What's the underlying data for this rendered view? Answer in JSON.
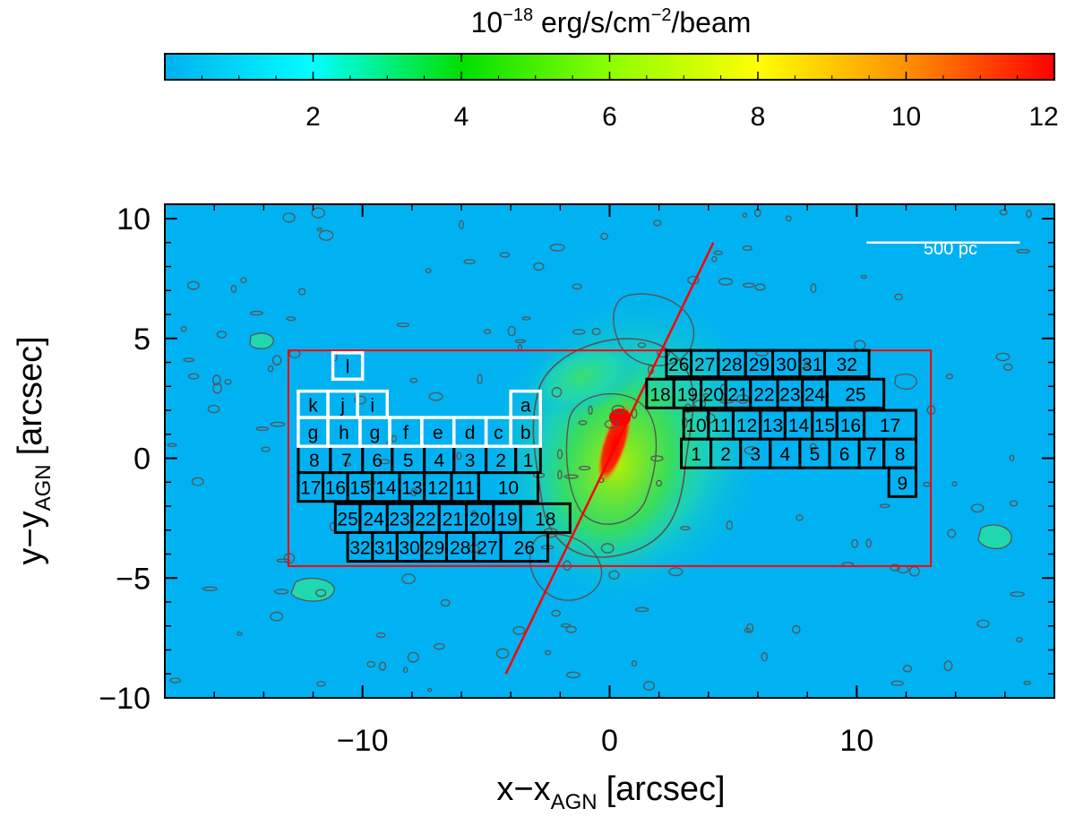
{
  "chart_data": {
    "type": "heatmap",
    "colorbar": {
      "title_base": "10",
      "title_exp": "−18",
      "title_unit": " erg/s/cm",
      "title_unit_exp": "−2",
      "title_tail": "/beam",
      "range": [
        0,
        12
      ],
      "ticks": [
        "2",
        "4",
        "6",
        "8",
        "10",
        "12"
      ],
      "tick_values": [
        2,
        4,
        6,
        8,
        10,
        12
      ],
      "colors": [
        "#00b0f0",
        "#00ffff",
        "#00e000",
        "#8cff00",
        "#ffff00",
        "#ff9000",
        "#ff0000"
      ]
    },
    "x_axis": {
      "label": "x",
      "label_minus": "−",
      "label_sub_base": "x",
      "label_sub": "AGN",
      "label_unit": "[arcsec]",
      "range": [
        -18,
        18
      ],
      "ticks": [
        "−10",
        "0",
        "10"
      ],
      "tick_values": [
        -10,
        0,
        10
      ]
    },
    "y_axis": {
      "label": "y",
      "label_minus": "−",
      "label_sub_base": "y",
      "label_sub": "AGN",
      "label_unit": "[arcsec]",
      "range": [
        -10,
        10.6
      ],
      "ticks": [
        "10",
        "5",
        "0",
        "−5",
        "−10"
      ],
      "tick_values": [
        10,
        5,
        0,
        -5,
        -10
      ]
    },
    "scale_bar": {
      "label": "500 pc",
      "x": [
        10.4,
        16.6
      ],
      "y": 9.0
    },
    "region_rectangle": {
      "x": [
        -13,
        13
      ],
      "y": [
        -4.5,
        4.5
      ],
      "color": "#ff0000"
    },
    "axis_line": {
      "x": [
        -4.2,
        4.2
      ],
      "y": [
        -9.0,
        9.0
      ],
      "color": "#ff0000"
    },
    "background_color": "#00b2f2",
    "emission_peak": {
      "x": 0.1,
      "y": 0.3,
      "value": 12
    },
    "grid": false,
    "boxes_white": [
      {
        "label": "l",
        "x": [
          -11.2,
          -10.0
        ],
        "y": [
          3.3,
          4.4
        ]
      },
      {
        "label": "k",
        "x": [
          -12.6,
          -11.4
        ],
        "y": [
          1.7,
          2.8
        ]
      },
      {
        "label": "j",
        "x": [
          -11.4,
          -10.2
        ],
        "y": [
          1.7,
          2.8
        ]
      },
      {
        "label": "i",
        "x": [
          -10.2,
          -9.0
        ],
        "y": [
          1.7,
          2.8
        ]
      },
      {
        "label": "a",
        "x": [
          -4.0,
          -2.8
        ],
        "y": [
          1.7,
          2.8
        ]
      },
      {
        "label": "g",
        "x": [
          -12.6,
          -11.4
        ],
        "y": [
          0.5,
          1.7
        ]
      },
      {
        "label": "h",
        "x": [
          -11.4,
          -10.1
        ],
        "y": [
          0.5,
          1.7
        ]
      },
      {
        "label": "g",
        "x": [
          -10.1,
          -8.9
        ],
        "y": [
          0.5,
          1.7
        ]
      },
      {
        "label": "f",
        "x": [
          -8.9,
          -7.6
        ],
        "y": [
          0.5,
          1.7
        ]
      },
      {
        "label": "e",
        "x": [
          -7.6,
          -6.3
        ],
        "y": [
          0.5,
          1.7
        ]
      },
      {
        "label": "d",
        "x": [
          -6.3,
          -5.0
        ],
        "y": [
          0.5,
          1.7
        ]
      },
      {
        "label": "c",
        "x": [
          -5.0,
          -4.0
        ],
        "y": [
          0.5,
          1.7
        ]
      },
      {
        "label": "b",
        "x": [
          -4.0,
          -2.8
        ],
        "y": [
          0.5,
          1.7
        ]
      }
    ],
    "boxes_black": [
      {
        "label": "8",
        "x": [
          -12.6,
          -11.3
        ],
        "y": [
          -0.6,
          0.5
        ]
      },
      {
        "label": "7",
        "x": [
          -11.3,
          -10.0
        ],
        "y": [
          -0.6,
          0.5
        ]
      },
      {
        "label": "6",
        "x": [
          -10.0,
          -8.8
        ],
        "y": [
          -0.6,
          0.5
        ]
      },
      {
        "label": "5",
        "x": [
          -8.8,
          -7.5
        ],
        "y": [
          -0.6,
          0.5
        ]
      },
      {
        "label": "4",
        "x": [
          -7.5,
          -6.3
        ],
        "y": [
          -0.6,
          0.5
        ]
      },
      {
        "label": "3",
        "x": [
          -6.3,
          -5.0
        ],
        "y": [
          -0.6,
          0.5
        ]
      },
      {
        "label": "2",
        "x": [
          -5.0,
          -3.8
        ],
        "y": [
          -0.6,
          0.5
        ]
      },
      {
        "label": "1",
        "x": [
          -3.8,
          -2.8
        ],
        "y": [
          -0.6,
          0.5
        ]
      },
      {
        "label": "17",
        "x": [
          -12.6,
          -11.6
        ],
        "y": [
          -1.8,
          -0.6
        ]
      },
      {
        "label": "16",
        "x": [
          -11.6,
          -10.6
        ],
        "y": [
          -1.8,
          -0.6
        ]
      },
      {
        "label": "15",
        "x": [
          -10.6,
          -9.6
        ],
        "y": [
          -1.8,
          -0.6
        ]
      },
      {
        "label": "14",
        "x": [
          -9.6,
          -8.5
        ],
        "y": [
          -1.8,
          -0.6
        ]
      },
      {
        "label": "13",
        "x": [
          -8.5,
          -7.5
        ],
        "y": [
          -1.8,
          -0.6
        ]
      },
      {
        "label": "12",
        "x": [
          -7.5,
          -6.4
        ],
        "y": [
          -1.8,
          -0.6
        ]
      },
      {
        "label": "11",
        "x": [
          -6.4,
          -5.3
        ],
        "y": [
          -1.8,
          -0.6
        ]
      },
      {
        "label": "10",
        "x": [
          -5.3,
          -2.9
        ],
        "y": [
          -1.8,
          -0.6
        ]
      },
      {
        "label": "25",
        "x": [
          -11.1,
          -10.1
        ],
        "y": [
          -3.1,
          -1.9
        ]
      },
      {
        "label": "24",
        "x": [
          -10.1,
          -9.0
        ],
        "y": [
          -3.1,
          -1.9
        ]
      },
      {
        "label": "23",
        "x": [
          -9.0,
          -8.0
        ],
        "y": [
          -3.1,
          -1.9
        ]
      },
      {
        "label": "22",
        "x": [
          -8.0,
          -6.9
        ],
        "y": [
          -3.1,
          -1.9
        ]
      },
      {
        "label": "21",
        "x": [
          -6.9,
          -5.8
        ],
        "y": [
          -3.1,
          -1.9
        ]
      },
      {
        "label": "20",
        "x": [
          -5.8,
          -4.7
        ],
        "y": [
          -3.1,
          -1.9
        ]
      },
      {
        "label": "19",
        "x": [
          -4.7,
          -3.6
        ],
        "y": [
          -3.1,
          -1.9
        ]
      },
      {
        "label": "18",
        "x": [
          -3.6,
          -1.6
        ],
        "y": [
          -3.1,
          -1.9
        ]
      },
      {
        "label": "32",
        "x": [
          -10.6,
          -9.6
        ],
        "y": [
          -4.3,
          -3.1
        ]
      },
      {
        "label": "31",
        "x": [
          -9.6,
          -8.6
        ],
        "y": [
          -4.3,
          -3.1
        ]
      },
      {
        "label": "30",
        "x": [
          -8.6,
          -7.6
        ],
        "y": [
          -4.3,
          -3.1
        ]
      },
      {
        "label": "29",
        "x": [
          -7.6,
          -6.6
        ],
        "y": [
          -4.3,
          -3.1
        ]
      },
      {
        "label": "28",
        "x": [
          -6.6,
          -5.5
        ],
        "y": [
          -4.3,
          -3.1
        ]
      },
      {
        "label": "27",
        "x": [
          -5.5,
          -4.4
        ],
        "y": [
          -4.3,
          -3.1
        ]
      },
      {
        "label": "26",
        "x": [
          -4.4,
          -2.5
        ],
        "y": [
          -4.3,
          -3.1
        ]
      },
      {
        "label": "26",
        "x": [
          2.3,
          3.3
        ],
        "y": [
          3.4,
          4.5
        ]
      },
      {
        "label": "27",
        "x": [
          3.3,
          4.4
        ],
        "y": [
          3.4,
          4.5
        ]
      },
      {
        "label": "28",
        "x": [
          4.4,
          5.5
        ],
        "y": [
          3.4,
          4.5
        ]
      },
      {
        "label": "29",
        "x": [
          5.5,
          6.6
        ],
        "y": [
          3.4,
          4.5
        ]
      },
      {
        "label": "30",
        "x": [
          6.6,
          7.7
        ],
        "y": [
          3.4,
          4.5
        ]
      },
      {
        "label": "31",
        "x": [
          7.7,
          8.7
        ],
        "y": [
          3.4,
          4.5
        ]
      },
      {
        "label": "32",
        "x": [
          8.7,
          10.5
        ],
        "y": [
          3.4,
          4.5
        ]
      },
      {
        "label": "18",
        "x": [
          1.5,
          2.6
        ],
        "y": [
          2.1,
          3.3
        ]
      },
      {
        "label": "19",
        "x": [
          2.6,
          3.7
        ],
        "y": [
          2.1,
          3.3
        ]
      },
      {
        "label": "20",
        "x": [
          3.7,
          4.7
        ],
        "y": [
          2.1,
          3.3
        ]
      },
      {
        "label": "21",
        "x": [
          4.7,
          5.7
        ],
        "y": [
          2.1,
          3.3
        ]
      },
      {
        "label": "22",
        "x": [
          5.7,
          6.8
        ],
        "y": [
          2.1,
          3.3
        ]
      },
      {
        "label": "23",
        "x": [
          6.8,
          7.8
        ],
        "y": [
          2.1,
          3.3
        ]
      },
      {
        "label": "24",
        "x": [
          7.8,
          8.8
        ],
        "y": [
          2.1,
          3.3
        ]
      },
      {
        "label": "25",
        "x": [
          8.8,
          11.1
        ],
        "y": [
          2.1,
          3.3
        ]
      },
      {
        "label": "10",
        "x": [
          3.0,
          4.0
        ],
        "y": [
          0.8,
          2.0
        ]
      },
      {
        "label": "11",
        "x": [
          4.0,
          5.0
        ],
        "y": [
          0.8,
          2.0
        ]
      },
      {
        "label": "12",
        "x": [
          5.0,
          6.1
        ],
        "y": [
          0.8,
          2.0
        ]
      },
      {
        "label": "13",
        "x": [
          6.1,
          7.1
        ],
        "y": [
          0.8,
          2.0
        ]
      },
      {
        "label": "14",
        "x": [
          7.1,
          8.2
        ],
        "y": [
          0.8,
          2.0
        ]
      },
      {
        "label": "15",
        "x": [
          8.2,
          9.2
        ],
        "y": [
          0.8,
          2.0
        ]
      },
      {
        "label": "16",
        "x": [
          9.2,
          10.3
        ],
        "y": [
          0.8,
          2.0
        ]
      },
      {
        "label": "17",
        "x": [
          10.3,
          12.4
        ],
        "y": [
          0.8,
          2.0
        ]
      },
      {
        "label": "1",
        "x": [
          2.9,
          4.1
        ],
        "y": [
          -0.4,
          0.8
        ]
      },
      {
        "label": "2",
        "x": [
          4.1,
          5.3
        ],
        "y": [
          -0.4,
          0.8
        ]
      },
      {
        "label": "3",
        "x": [
          5.3,
          6.5
        ],
        "y": [
          -0.4,
          0.8
        ]
      },
      {
        "label": "4",
        "x": [
          6.5,
          7.7
        ],
        "y": [
          -0.4,
          0.8
        ]
      },
      {
        "label": "5",
        "x": [
          7.7,
          8.9
        ],
        "y": [
          -0.4,
          0.8
        ]
      },
      {
        "label": "6",
        "x": [
          8.9,
          10.1
        ],
        "y": [
          -0.4,
          0.8
        ]
      },
      {
        "label": "7",
        "x": [
          10.1,
          11.1
        ],
        "y": [
          -0.4,
          0.8
        ]
      },
      {
        "label": "8",
        "x": [
          11.1,
          12.4
        ],
        "y": [
          -0.4,
          0.8
        ]
      },
      {
        "label": "9",
        "x": [
          11.3,
          12.4
        ],
        "y": [
          -1.6,
          -0.4
        ]
      }
    ]
  }
}
